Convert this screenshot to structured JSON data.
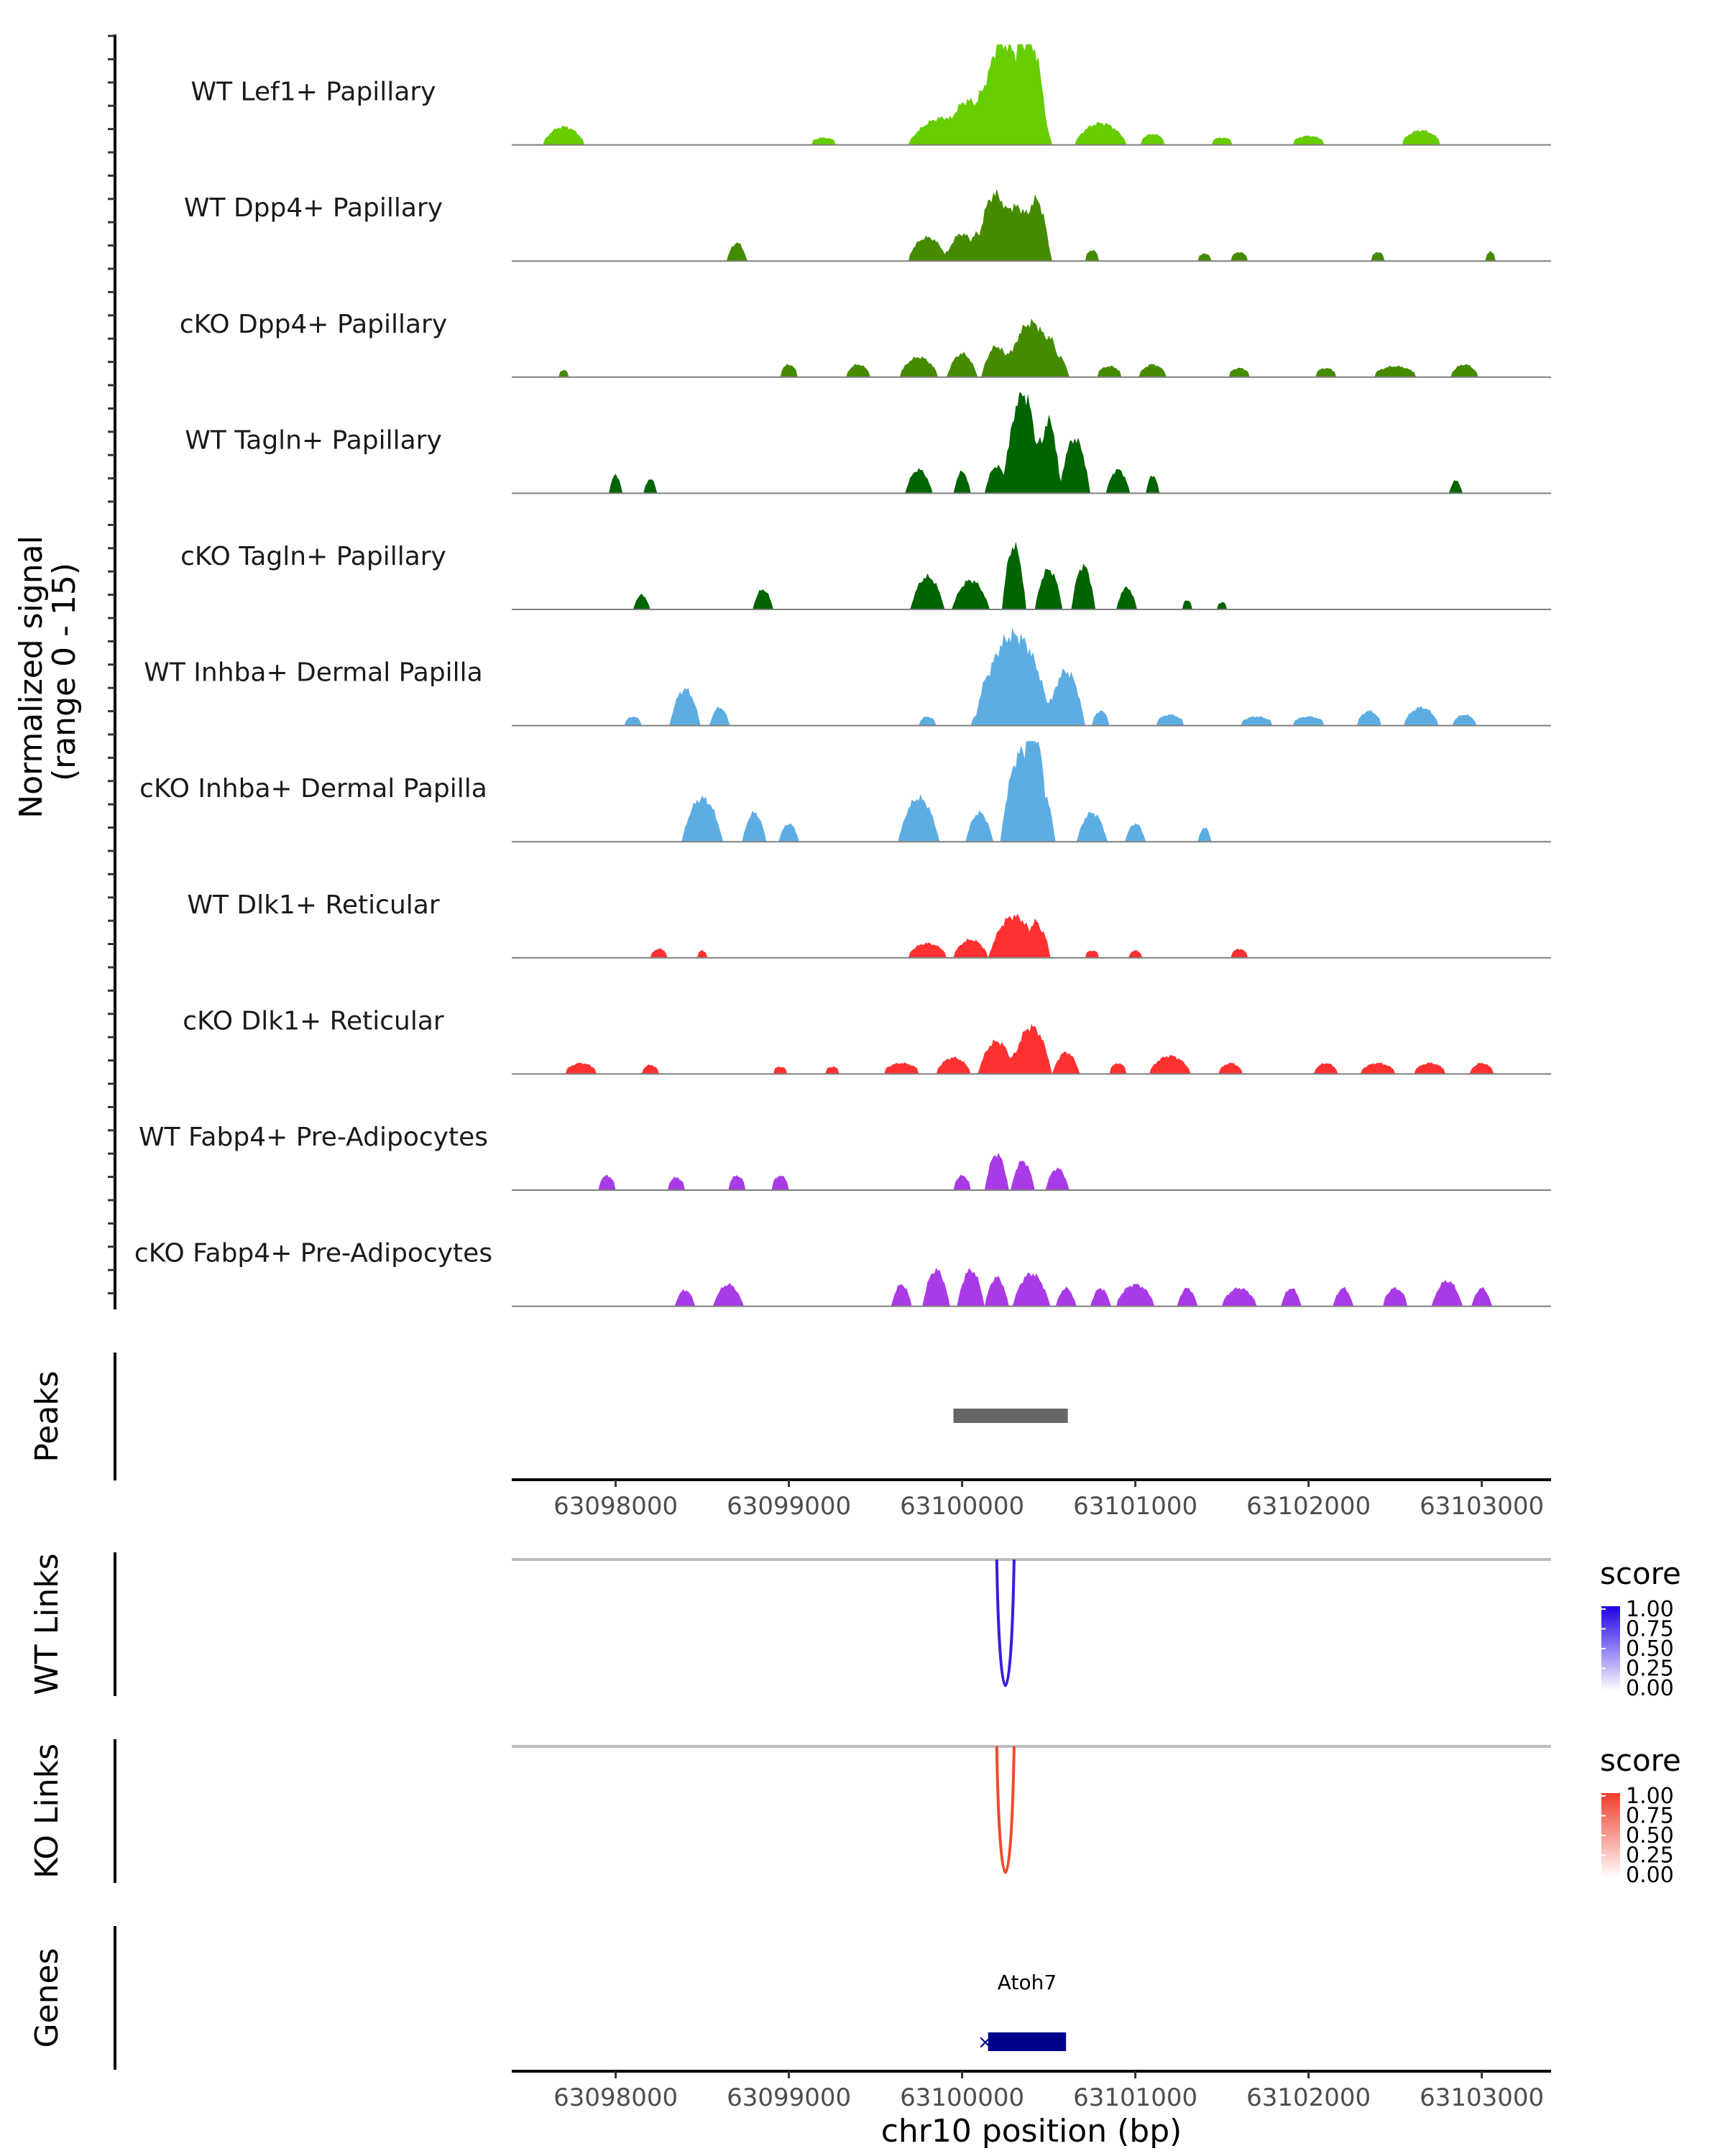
{
  "chart_data": {
    "type": "area",
    "region": "chr10",
    "xlabel": "chr10 position (bp)",
    "xlim": [
      63097400,
      63103400
    ],
    "x_ticks": [
      63098000,
      63099000,
      63100000,
      63101000,
      63102000,
      63103000
    ],
    "x_tick_labels": [
      "63098000",
      "63099000",
      "63100000",
      "63101000",
      "63102000",
      "63103000"
    ],
    "coverage": {
      "ylabel_line1": "Normalized signal",
      "ylabel_line2": "(range 0 - 15)",
      "ylim": [
        0,
        15
      ],
      "tracks": [
        {
          "name": "WT Lef1+ Papillary",
          "color": "#66CD00",
          "peaks": [
            [
              63097700,
              1.0,
              130
            ],
            [
              63099200,
              0.4,
              100
            ],
            [
              63099900,
              1.5,
              220
            ],
            [
              63100100,
              1.8,
              160
            ],
            [
              63100300,
              4.0,
              220
            ],
            [
              63100400,
              2.6,
              90
            ],
            [
              63100250,
              1.6,
              100
            ],
            [
              63100800,
              1.2,
              160
            ],
            [
              63101100,
              0.6,
              90
            ],
            [
              63101500,
              0.4,
              90
            ],
            [
              63102000,
              0.5,
              120
            ],
            [
              63102650,
              0.8,
              130
            ]
          ]
        },
        {
          "name": "WT Dpp4+ Papillary",
          "color": "#458B00",
          "peaks": [
            [
              63098700,
              1.0,
              60
            ],
            [
              63099800,
              1.3,
              120
            ],
            [
              63100000,
              1.5,
              100
            ],
            [
              63100150,
              1.9,
              100
            ],
            [
              63100300,
              3.0,
              200
            ],
            [
              63100450,
              1.8,
              70
            ],
            [
              63100750,
              0.6,
              50
            ],
            [
              63101400,
              0.4,
              60
            ],
            [
              63101600,
              0.5,
              60
            ],
            [
              63102400,
              0.5,
              50
            ],
            [
              63103050,
              0.5,
              40
            ]
          ]
        },
        {
          "name": "cKO Dpp4+ Papillary",
          "color": "#458B00",
          "peaks": [
            [
              63097700,
              0.4,
              40
            ],
            [
              63099000,
              0.7,
              60
            ],
            [
              63099400,
              0.7,
              80
            ],
            [
              63099750,
              1.1,
              120
            ],
            [
              63100000,
              1.3,
              90
            ],
            [
              63100200,
              1.7,
              90
            ],
            [
              63100400,
              3.0,
              150
            ],
            [
              63100550,
              1.2,
              70
            ],
            [
              63100850,
              0.6,
              90
            ],
            [
              63101100,
              0.7,
              90
            ],
            [
              63101600,
              0.5,
              80
            ],
            [
              63102100,
              0.5,
              80
            ],
            [
              63102500,
              0.6,
              150
            ],
            [
              63102900,
              0.7,
              90
            ]
          ]
        },
        {
          "name": "WT Tagln+ Papillary",
          "color": "#006400",
          "peaks": [
            [
              63098000,
              1.0,
              40
            ],
            [
              63098200,
              0.8,
              40
            ],
            [
              63099750,
              1.3,
              80
            ],
            [
              63100000,
              1.2,
              50
            ],
            [
              63100200,
              1.5,
              70
            ],
            [
              63100350,
              5.5,
              110
            ],
            [
              63100500,
              4.0,
              70
            ],
            [
              63100650,
              3.0,
              90
            ],
            [
              63100900,
              1.3,
              70
            ],
            [
              63101100,
              1.0,
              40
            ],
            [
              63102850,
              0.7,
              40
            ]
          ]
        },
        {
          "name": "cKO Tagln+ Papillary",
          "color": "#006400",
          "peaks": [
            [
              63098150,
              0.8,
              50
            ],
            [
              63098850,
              1.1,
              60
            ],
            [
              63099800,
              1.8,
              100
            ],
            [
              63100050,
              1.6,
              110
            ],
            [
              63100300,
              3.5,
              70
            ],
            [
              63100500,
              2.2,
              80
            ],
            [
              63100700,
              2.4,
              70
            ],
            [
              63100950,
              1.2,
              60
            ],
            [
              63101300,
              0.5,
              40
            ],
            [
              63101500,
              0.4,
              40
            ]
          ]
        },
        {
          "name": "WT Inhba+ Dermal Papilla",
          "color": "#5DADE2",
          "peaks": [
            [
              63098100,
              0.5,
              60
            ],
            [
              63098400,
              2.0,
              90
            ],
            [
              63098600,
              1.0,
              60
            ],
            [
              63099800,
              0.5,
              60
            ],
            [
              63100100,
              0.6,
              60
            ],
            [
              63100300,
              5.0,
              220
            ],
            [
              63100600,
              3.0,
              110
            ],
            [
              63100800,
              0.8,
              60
            ],
            [
              63101200,
              0.6,
              100
            ],
            [
              63101700,
              0.5,
              120
            ],
            [
              63102000,
              0.5,
              120
            ],
            [
              63102350,
              0.8,
              80
            ],
            [
              63102650,
              1.0,
              110
            ],
            [
              63102900,
              0.6,
              80
            ]
          ]
        },
        {
          "name": "cKO Inhba+ Dermal Papilla",
          "color": "#5DADE2",
          "peaks": [
            [
              63098500,
              2.4,
              120
            ],
            [
              63098800,
              1.6,
              70
            ],
            [
              63099000,
              1.0,
              60
            ],
            [
              63099750,
              2.4,
              120
            ],
            [
              63100100,
              1.6,
              80
            ],
            [
              63100350,
              5.0,
              130
            ],
            [
              63100450,
              3.0,
              90
            ],
            [
              63100750,
              1.6,
              90
            ],
            [
              63101000,
              1.0,
              60
            ],
            [
              63101400,
              0.8,
              40
            ]
          ]
        },
        {
          "name": "WT Dlk1+ Reticular",
          "color": "#FF3030",
          "peaks": [
            [
              63098250,
              0.5,
              60
            ],
            [
              63098500,
              0.4,
              40
            ],
            [
              63099800,
              0.8,
              130
            ],
            [
              63100050,
              1.0,
              110
            ],
            [
              63100300,
              2.3,
              150
            ],
            [
              63100450,
              1.6,
              60
            ],
            [
              63100750,
              0.4,
              60
            ],
            [
              63101000,
              0.4,
              50
            ],
            [
              63101600,
              0.5,
              60
            ]
          ]
        },
        {
          "name": "cKO Dlk1+ Reticular",
          "color": "#FF3030",
          "peaks": [
            [
              63097800,
              0.6,
              110
            ],
            [
              63098200,
              0.5,
              60
            ],
            [
              63098950,
              0.4,
              60
            ],
            [
              63099250,
              0.4,
              60
            ],
            [
              63099650,
              0.6,
              130
            ],
            [
              63099950,
              0.9,
              110
            ],
            [
              63100200,
              1.8,
              110
            ],
            [
              63100400,
              2.6,
              120
            ],
            [
              63100600,
              1.2,
              80
            ],
            [
              63100900,
              0.6,
              60
            ],
            [
              63101200,
              1.0,
              130
            ],
            [
              63101550,
              0.6,
              80
            ],
            [
              63102100,
              0.6,
              80
            ],
            [
              63102400,
              0.6,
              120
            ],
            [
              63102700,
              0.6,
              110
            ],
            [
              63103000,
              0.6,
              80
            ]
          ]
        },
        {
          "name": "WT Fabp4+ Pre-Adipocytes",
          "color": "#A93BE6",
          "peaks": [
            [
              63097950,
              0.8,
              60
            ],
            [
              63098350,
              0.7,
              60
            ],
            [
              63098700,
              0.8,
              60
            ],
            [
              63098950,
              0.8,
              60
            ],
            [
              63100000,
              0.8,
              60
            ],
            [
              63100200,
              2.0,
              70
            ],
            [
              63100350,
              1.6,
              70
            ],
            [
              63100550,
              1.2,
              70
            ]
          ]
        },
        {
          "name": "cKO Fabp4+ Pre-Adipocytes",
          "color": "#A93BE6",
          "peaks": [
            [
              63098400,
              0.9,
              60
            ],
            [
              63098650,
              1.2,
              90
            ],
            [
              63099650,
              1.2,
              60
            ],
            [
              63099850,
              2.0,
              80
            ],
            [
              63100050,
              2.0,
              80
            ],
            [
              63100200,
              1.6,
              70
            ],
            [
              63100400,
              1.8,
              110
            ],
            [
              63100600,
              1.0,
              60
            ],
            [
              63100800,
              1.0,
              60
            ],
            [
              63101000,
              1.2,
              120
            ],
            [
              63101300,
              1.0,
              60
            ],
            [
              63101600,
              1.0,
              110
            ],
            [
              63101900,
              1.0,
              60
            ],
            [
              63102200,
              1.0,
              60
            ],
            [
              63102500,
              1.0,
              80
            ],
            [
              63102800,
              1.4,
              90
            ],
            [
              63103000,
              1.0,
              60
            ]
          ]
        }
      ]
    },
    "peaks_track": {
      "label": "Peaks",
      "start": 63099950,
      "end": 63100610,
      "color": "#666666"
    },
    "links": [
      {
        "label": "WT Links",
        "start": 63100200,
        "end": 63100300,
        "score": 1.0,
        "color": "#3B1AE0",
        "legend_low": "#FFFFFF",
        "legend_high": "#1E00E6"
      },
      {
        "label": "KO Links",
        "start": 63100200,
        "end": 63100300,
        "score": 0.85,
        "color": "#F04A2A",
        "legend_low": "#FFFFFF",
        "legend_high": "#F03C28"
      }
    ],
    "legend": {
      "title": "score",
      "ticks": [
        "1.00",
        "0.75",
        "0.50",
        "0.25",
        "0.00"
      ]
    },
    "genes": {
      "label": "Genes",
      "name": "Atoh7",
      "start": 63100150,
      "end": 63100600,
      "color": "#00008B",
      "strand_marker": "×"
    }
  }
}
